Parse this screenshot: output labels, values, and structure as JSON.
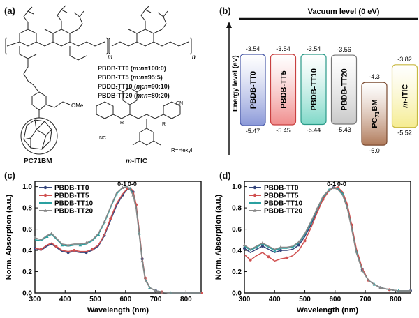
{
  "panels": {
    "a": "(a)",
    "b": "(b)",
    "c": "(c)",
    "d": "(d)"
  },
  "structures": {
    "copolymer_lines": [
      {
        "name": "PBDB-TT0",
        "ratio_prefix": " (",
        "ratio_var": "m:n",
        "ratio_value": "=100:0)"
      },
      {
        "name": "PBDB-TT5",
        "ratio_prefix": " (",
        "ratio_var": "m:n",
        "ratio_value": "=95:5)"
      },
      {
        "name": "PBDB-TT10",
        "ratio_prefix": " (",
        "ratio_var": "m:n",
        "ratio_value": "=90:10)"
      },
      {
        "name": "PBDB-TT20",
        "ratio_prefix": " (",
        "ratio_var": "m:n",
        "ratio_value": "=80:20)"
      }
    ],
    "m_subscript": "m",
    "n_subscript": "n",
    "ome_label": "OMe",
    "fullerene_name": "PC71BM",
    "itic_name_prefix": "m",
    "itic_name_suffix": "-ITIC",
    "r_label": "R",
    "r_def": "R=Hexyl",
    "cn_label": "NC",
    "cn_label2": "CN",
    "o_label": "O"
  },
  "energy_diagram": {
    "title": "Vacuum level (0 eV)",
    "ylabel": "Energy level (eV)",
    "ylim": [
      -6.3,
      -3.2
    ],
    "materials": [
      {
        "name": "PBDB-TT0",
        "lumo": -3.54,
        "homo": -5.47,
        "lumo_label": "-3.54",
        "homo_label": "-5.47",
        "fill": "#8a98d8",
        "stroke": "#4a5aa8"
      },
      {
        "name": "PBDB-TT5",
        "lumo": -3.54,
        "homo": -5.45,
        "lumo_label": "-3.54",
        "homo_label": "-5.45",
        "fill": "#f08c8c",
        "stroke": "#c84040"
      },
      {
        "name": "PBDB-TT10",
        "lumo": -3.54,
        "homo": -5.44,
        "lumo_label": "-3.54",
        "homo_label": "-5.44",
        "fill": "#7fd8c8",
        "stroke": "#2a9a88"
      },
      {
        "name": "PBDB-TT20",
        "lumo": -3.56,
        "homo": -5.43,
        "lumo_label": "-3.56",
        "homo_label": "-5.43",
        "fill": "#c8c8c8",
        "stroke": "#777777"
      },
      {
        "name_main": "PC",
        "name_sub": "71",
        "name_tail": "BM",
        "lumo": -4.3,
        "homo": -6.0,
        "lumo_label": "-4.3",
        "homo_label": "-6.0",
        "fill": "#b07a5a",
        "stroke": "#7a4a30"
      },
      {
        "name_prefix": "m",
        "name_tail": "-ITIC",
        "lumo": -3.82,
        "homo": -5.52,
        "lumo_label": "-3.82",
        "homo_label": "-5.52",
        "fill": "#f5ec90",
        "stroke": "#c8b840"
      }
    ]
  },
  "chart_data": [
    {
      "type": "line",
      "panel": "c",
      "xlabel": "Wavelength (nm)",
      "ylabel": "Norm. Absorption (a.u.)",
      "xlim": [
        300,
        850
      ],
      "ylim": [
        0.0,
        1.05
      ],
      "xticks": [
        "300",
        "400",
        "500",
        "600",
        "700",
        "800"
      ],
      "yticks": [
        "0.0",
        "0.2",
        "0.4",
        "0.6",
        "0.8",
        "1.0"
      ],
      "annotations": [
        "0-1",
        "0-0"
      ],
      "series": [
        {
          "name": "PBDB-TT0",
          "color": "#33447a",
          "x": [
            300,
            320,
            340,
            355,
            370,
            390,
            410,
            430,
            450,
            470,
            490,
            510,
            530,
            550,
            570,
            590,
            605,
            615,
            625,
            635,
            645,
            655,
            665,
            680,
            700,
            720,
            750,
            800,
            850
          ],
          "y": [
            0.42,
            0.4,
            0.44,
            0.46,
            0.43,
            0.39,
            0.38,
            0.39,
            0.38,
            0.38,
            0.4,
            0.44,
            0.54,
            0.68,
            0.82,
            0.92,
            0.97,
            0.98,
            0.95,
            0.82,
            0.58,
            0.32,
            0.13,
            0.05,
            0.02,
            0.01,
            0.0,
            0.0,
            0.0
          ]
        },
        {
          "name": "PBDB-TT5",
          "color": "#d05050",
          "x": [
            300,
            320,
            340,
            355,
            370,
            390,
            410,
            430,
            450,
            470,
            490,
            510,
            530,
            550,
            570,
            590,
            605,
            615,
            625,
            635,
            645,
            655,
            665,
            680,
            700,
            720,
            750,
            800,
            850
          ],
          "y": [
            0.42,
            0.41,
            0.45,
            0.47,
            0.44,
            0.4,
            0.39,
            0.4,
            0.39,
            0.39,
            0.41,
            0.45,
            0.55,
            0.7,
            0.84,
            0.93,
            0.98,
            0.99,
            0.96,
            0.83,
            0.59,
            0.33,
            0.14,
            0.05,
            0.02,
            0.01,
            0.0,
            0.0,
            0.0
          ]
        },
        {
          "name": "PBDB-TT10",
          "color": "#2aa0a0",
          "x": [
            300,
            320,
            340,
            355,
            370,
            390,
            410,
            430,
            450,
            470,
            490,
            510,
            530,
            550,
            570,
            590,
            605,
            615,
            625,
            635,
            645,
            655,
            665,
            680,
            700,
            720,
            750,
            800,
            850
          ],
          "y": [
            0.5,
            0.49,
            0.53,
            0.55,
            0.51,
            0.45,
            0.44,
            0.45,
            0.45,
            0.46,
            0.49,
            0.55,
            0.66,
            0.8,
            0.93,
            0.99,
            1.0,
            0.98,
            0.93,
            0.8,
            0.56,
            0.31,
            0.13,
            0.05,
            0.02,
            0.01,
            0.0,
            0.0,
            0.0
          ]
        },
        {
          "name": "PBDB-TT20",
          "color": "#888888",
          "x": [
            300,
            320,
            340,
            355,
            370,
            390,
            410,
            430,
            450,
            470,
            490,
            510,
            530,
            550,
            570,
            590,
            605,
            615,
            625,
            635,
            645,
            655,
            665,
            680,
            700,
            720,
            750,
            800,
            850
          ],
          "y": [
            0.52,
            0.5,
            0.54,
            0.56,
            0.52,
            0.46,
            0.45,
            0.46,
            0.46,
            0.47,
            0.5,
            0.56,
            0.67,
            0.81,
            0.94,
            0.99,
            1.0,
            0.97,
            0.92,
            0.79,
            0.55,
            0.3,
            0.12,
            0.05,
            0.02,
            0.01,
            0.0,
            0.0,
            0.0
          ]
        }
      ]
    },
    {
      "type": "line",
      "panel": "d",
      "xlabel": "Wavelength (nm)",
      "ylabel": "Norm. Absorption (a.u.)",
      "xlim": [
        300,
        850
      ],
      "ylim": [
        0.0,
        1.05
      ],
      "xticks": [
        "300",
        "400",
        "500",
        "600",
        "700",
        "800"
      ],
      "yticks": [
        "0.0",
        "0.2",
        "0.4",
        "0.6",
        "0.8",
        "1.0"
      ],
      "annotations": [
        "0-1",
        "0-0"
      ],
      "series": [
        {
          "name": "PBDB-TT0",
          "color": "#33447a",
          "x": [
            300,
            320,
            340,
            360,
            380,
            400,
            420,
            440,
            460,
            480,
            500,
            520,
            540,
            560,
            580,
            595,
            610,
            625,
            640,
            655,
            670,
            690,
            710,
            730,
            750,
            780,
            810,
            850
          ],
          "y": [
            0.42,
            0.38,
            0.41,
            0.44,
            0.41,
            0.38,
            0.4,
            0.4,
            0.41,
            0.45,
            0.53,
            0.64,
            0.77,
            0.89,
            0.96,
            0.99,
            0.98,
            0.94,
            0.82,
            0.62,
            0.4,
            0.22,
            0.12,
            0.08,
            0.05,
            0.03,
            0.02,
            0.02
          ]
        },
        {
          "name": "PBDB-TT5",
          "color": "#d05050",
          "x": [
            300,
            320,
            340,
            360,
            380,
            400,
            420,
            440,
            460,
            480,
            500,
            520,
            540,
            560,
            580,
            595,
            610,
            625,
            640,
            655,
            670,
            690,
            710,
            730,
            750,
            780,
            810,
            850
          ],
          "y": [
            0.36,
            0.31,
            0.35,
            0.38,
            0.34,
            0.3,
            0.32,
            0.33,
            0.35,
            0.4,
            0.49,
            0.61,
            0.75,
            0.88,
            0.96,
            0.99,
            0.99,
            0.95,
            0.84,
            0.64,
            0.42,
            0.23,
            0.12,
            0.08,
            0.05,
            0.03,
            0.02,
            0.02
          ]
        },
        {
          "name": "PBDB-TT10",
          "color": "#2aa0a0",
          "x": [
            300,
            320,
            340,
            360,
            380,
            400,
            420,
            440,
            460,
            480,
            500,
            520,
            540,
            560,
            580,
            595,
            610,
            625,
            640,
            655,
            670,
            690,
            710,
            730,
            750,
            780,
            810,
            850
          ],
          "y": [
            0.44,
            0.4,
            0.43,
            0.46,
            0.43,
            0.4,
            0.42,
            0.42,
            0.43,
            0.47,
            0.55,
            0.66,
            0.78,
            0.9,
            0.97,
            0.99,
            0.98,
            0.93,
            0.81,
            0.61,
            0.39,
            0.21,
            0.12,
            0.08,
            0.05,
            0.03,
            0.02,
            0.02
          ]
        },
        {
          "name": "PBDB-TT20",
          "color": "#888888",
          "x": [
            300,
            320,
            340,
            360,
            380,
            400,
            420,
            440,
            460,
            480,
            500,
            520,
            540,
            560,
            580,
            595,
            610,
            625,
            640,
            655,
            670,
            690,
            710,
            730,
            750,
            780,
            810,
            850
          ],
          "y": [
            0.45,
            0.41,
            0.44,
            0.47,
            0.44,
            0.41,
            0.43,
            0.43,
            0.44,
            0.48,
            0.56,
            0.67,
            0.79,
            0.91,
            0.97,
            0.99,
            0.97,
            0.92,
            0.8,
            0.6,
            0.38,
            0.21,
            0.12,
            0.08,
            0.05,
            0.03,
            0.02,
            0.02
          ]
        }
      ]
    }
  ]
}
